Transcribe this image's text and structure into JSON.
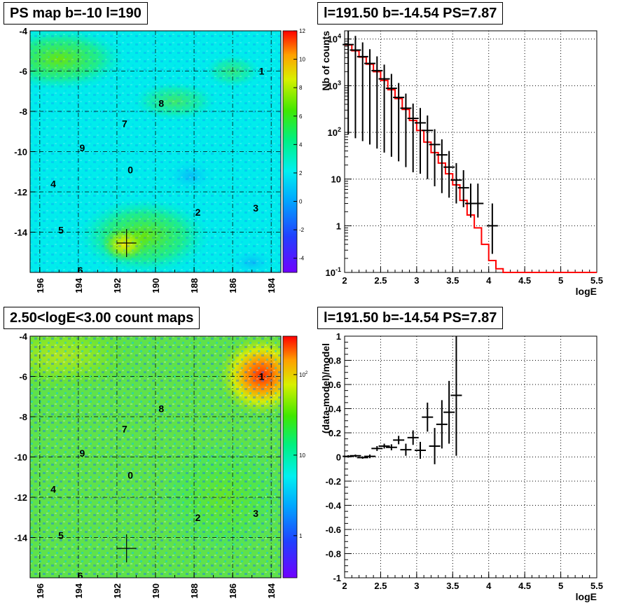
{
  "panels": {
    "map1_title": "PS map b=-10 l=190",
    "spec_title": "l=191.50 b=-14.54 PS=7.87",
    "map2_title": "2.50<logE<3.00 count maps",
    "resid_title": "l=191.50 b=-14.54 PS=7.87"
  },
  "chart_data": [
    {
      "type": "heatmap",
      "title": "PS map b=-10 l=190",
      "xlim": [
        196.5,
        183.5
      ],
      "ylim": [
        -16,
        -4
      ],
      "x_ticks": [
        "196",
        "194",
        "192",
        "190",
        "188",
        "186",
        "184"
      ],
      "y_ticks": [
        "-4",
        "-6",
        "-8",
        "-10",
        "-12",
        "-14"
      ],
      "colorbar": {
        "min": -5,
        "max": 12,
        "ticks": [
          "12",
          "10",
          "8",
          "6",
          "4",
          "2",
          "0",
          "-2",
          "-4"
        ]
      },
      "sources": [
        {
          "label": "0",
          "l": 191.3,
          "b": -10.9
        },
        {
          "label": "1",
          "l": 184.5,
          "b": -6.0
        },
        {
          "label": "2",
          "l": 187.8,
          "b": -13.0
        },
        {
          "label": "3",
          "l": 184.8,
          "b": -12.8
        },
        {
          "label": "4",
          "l": 195.3,
          "b": -11.6
        },
        {
          "label": "5",
          "l": 194.9,
          "b": -13.9
        },
        {
          "label": "6",
          "l": 193.9,
          "b": -15.9
        },
        {
          "label": "7",
          "l": 191.6,
          "b": -8.6
        },
        {
          "label": "8",
          "l": 189.7,
          "b": -7.6
        },
        {
          "label": "9",
          "l": 193.8,
          "b": -9.8
        }
      ],
      "marker": {
        "l": 191.5,
        "b": -14.54
      }
    },
    {
      "type": "line",
      "title": "l=191.50 b=-14.54 PS=7.87",
      "xlabel": "logE",
      "ylabel": "Nb of counts",
      "xlim": [
        2,
        5.5
      ],
      "ylim": [
        0.1,
        15000
      ],
      "y_scale": "log",
      "x_ticks": [
        "2",
        "2.5",
        "3",
        "3.5",
        "4",
        "4.5",
        "5",
        "5.5"
      ],
      "y_ticks": [
        "10^-1",
        "1",
        "10",
        "10^2",
        "10^3",
        "10^4"
      ],
      "grid": true,
      "series": [
        {
          "color": "#ff0000",
          "style": "step",
          "x": [
            2,
            2.1,
            2.2,
            2.3,
            2.4,
            2.5,
            2.6,
            2.7,
            2.8,
            2.9,
            3.0,
            3.1,
            3.2,
            3.3,
            3.4,
            3.5,
            3.6,
            3.7,
            3.8,
            3.9,
            4.0,
            4.1,
            4.2,
            4.3,
            4.4,
            4.5,
            4.6,
            4.7,
            4.8,
            4.9,
            5.0,
            5.1,
            5.2,
            5.3,
            5.4
          ],
          "y": [
            7500,
            5600,
            4100,
            2900,
            2000,
            1300,
            820,
            530,
            310,
            180,
            110,
            62,
            37,
            22,
            13,
            7.5,
            3.5,
            1.7,
            0.9,
            0.4,
            0.18,
            0.12,
            0.1,
            0.1,
            0.1,
            0.1,
            0.1,
            0.1,
            0.1,
            0.1,
            0.1,
            0.1,
            0.1,
            0.1,
            0.1
          ]
        },
        {
          "color": "#000000",
          "style": "points",
          "x": [
            2.05,
            2.15,
            2.25,
            2.35,
            2.45,
            2.55,
            2.65,
            2.75,
            2.85,
            2.95,
            3.05,
            3.15,
            3.25,
            3.35,
            3.45,
            3.55,
            3.65,
            3.75,
            3.85,
            4.05
          ],
          "y": [
            7600,
            5800,
            4200,
            3000,
            2100,
            1400,
            880,
            560,
            330,
            200,
            160,
            110,
            55,
            33,
            18,
            9.5,
            6.5,
            3,
            3,
            1
          ],
          "err_lo": [
            7510,
            5725,
            4135,
            2945,
            2055,
            1363,
            850,
            536,
            312,
            186,
            147,
            100,
            48,
            28,
            14,
            6.5,
            4,
            1.5,
            1.5,
            0.75
          ],
          "err_hi": [
            7690,
            5875,
            4265,
            3055,
            2145,
            1437,
            910,
            584,
            348,
            214,
            173,
            120,
            62,
            38,
            22,
            12.5,
            9,
            5,
            5,
            2
          ]
        }
      ]
    },
    {
      "type": "heatmap",
      "title": "2.50<logE<3.00 count maps",
      "xlim": [
        196.5,
        183.5
      ],
      "ylim": [
        -16,
        -4
      ],
      "x_ticks": [
        "196",
        "194",
        "192",
        "190",
        "188",
        "186",
        "184"
      ],
      "y_ticks": [
        "-4",
        "-6",
        "-8",
        "-10",
        "-12",
        "-14"
      ],
      "colorbar": {
        "scale": "log",
        "min": 0.3,
        "max": 300,
        "ticks": [
          "10^2",
          "10",
          "1"
        ]
      },
      "sources": [
        {
          "label": "0",
          "l": 191.3,
          "b": -10.9
        },
        {
          "label": "1",
          "l": 184.5,
          "b": -6.0
        },
        {
          "label": "2",
          "l": 187.8,
          "b": -13.0
        },
        {
          "label": "3",
          "l": 184.8,
          "b": -12.8
        },
        {
          "label": "4",
          "l": 195.3,
          "b": -11.6
        },
        {
          "label": "5",
          "l": 194.9,
          "b": -13.9
        },
        {
          "label": "6",
          "l": 193.9,
          "b": -15.9
        },
        {
          "label": "7",
          "l": 191.6,
          "b": -8.6
        },
        {
          "label": "8",
          "l": 189.7,
          "b": -7.6
        },
        {
          "label": "9",
          "l": 193.8,
          "b": -9.8
        }
      ],
      "marker": {
        "l": 191.5,
        "b": -14.54
      }
    },
    {
      "type": "scatter",
      "title": "l=191.50 b=-14.54 PS=7.87",
      "xlabel": "logE",
      "ylabel": "(data-model)/model",
      "xlim": [
        2,
        5.5
      ],
      "ylim": [
        -1,
        1
      ],
      "x_ticks": [
        "2",
        "2.5",
        "3",
        "3.5",
        "4",
        "4.5",
        "5",
        "5.5"
      ],
      "y_ticks": [
        "-1",
        "-0.8",
        "-0.6",
        "-0.4",
        "-0.2",
        "0",
        "0.2",
        "0.4",
        "0.6",
        "0.8",
        "1"
      ],
      "grid": true,
      "series": [
        {
          "color": "#000000",
          "x": [
            2.05,
            2.15,
            2.25,
            2.35,
            2.45,
            2.55,
            2.65,
            2.75,
            2.85,
            2.95,
            3.05,
            3.15,
            3.25,
            3.35,
            3.45,
            3.55
          ],
          "y": [
            0.005,
            0.01,
            -0.005,
            0.005,
            0.07,
            0.09,
            0.08,
            0.14,
            0.06,
            0.16,
            0.055,
            0.33,
            0.09,
            0.27,
            0.37,
            0.51
          ],
          "err": [
            0.01,
            0.01,
            0.01,
            0.015,
            0.02,
            0.02,
            0.025,
            0.035,
            0.05,
            0.06,
            0.07,
            0.12,
            0.15,
            0.2,
            0.26,
            0.5
          ]
        }
      ]
    }
  ]
}
